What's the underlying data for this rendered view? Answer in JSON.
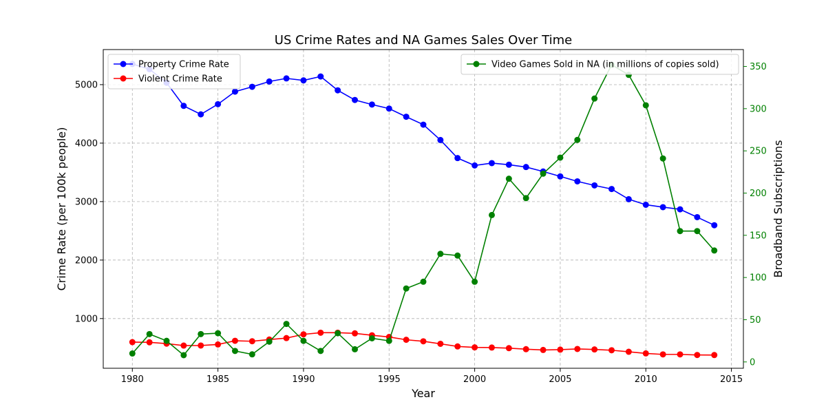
{
  "chart_data": {
    "type": "line",
    "title": "US Crime Rates and NA Games Sales Over Time",
    "xlabel": "Year",
    "ylabel_left": "Crime Rate (per 100k people)",
    "ylabel_right": "Broadband Subscriptions",
    "x": [
      1980,
      1981,
      1982,
      1983,
      1984,
      1985,
      1986,
      1987,
      1988,
      1989,
      1990,
      1991,
      1992,
      1993,
      1994,
      1995,
      1996,
      1997,
      1998,
      1999,
      2000,
      2001,
      2002,
      2003,
      2004,
      2005,
      2006,
      2007,
      2008,
      2009,
      2010,
      2011,
      2012,
      2013,
      2014
    ],
    "xlim": [
      1978.3,
      2015.7
    ],
    "xticks": [
      1980,
      1985,
      1990,
      1995,
      2000,
      2005,
      2010,
      2015
    ],
    "ylim_left": [
      150,
      5600
    ],
    "yticks_left": [
      1000,
      2000,
      3000,
      4000,
      5000
    ],
    "ylim_right": [
      -7.5,
      370
    ],
    "yticks_right": [
      0,
      50,
      100,
      150,
      200,
      250,
      300,
      350
    ],
    "grid": true,
    "series": [
      {
        "name": "Property Crime Rate",
        "axis": "left",
        "color": "#0000ff",
        "values": [
          5353,
          5264,
          5032,
          4637,
          4492,
          4666,
          4881,
          4963,
          5054,
          5107,
          5073,
          5140,
          4903,
          4738,
          4660,
          4591,
          4451,
          4316,
          4053,
          3744,
          3618,
          3658,
          3631,
          3591,
          3515,
          3431,
          3346,
          3277,
          3215,
          3041,
          2946,
          2905,
          2868,
          2734,
          2596
        ]
      },
      {
        "name": "Violent Crime Rate",
        "axis": "left",
        "color": "#ff0000",
        "values": [
          597,
          594,
          571,
          538,
          539,
          557,
          620,
          612,
          641,
          666,
          730,
          758,
          758,
          747,
          714,
          685,
          637,
          611,
          568,
          523,
          507,
          504,
          494,
          476,
          463,
          469,
          480,
          472,
          458,
          432,
          404,
          387,
          387,
          377,
          376
        ]
      },
      {
        "name": "Video Games Sold in NA (in millions of copies sold)",
        "axis": "right",
        "color": "#008000",
        "values": [
          10,
          33,
          25,
          8,
          33,
          34,
          13,
          9,
          24,
          45,
          25,
          13,
          34,
          15,
          28,
          25,
          87,
          95,
          128,
          126,
          95,
          174,
          217,
          194,
          223,
          242,
          263,
          312,
          352,
          340,
          304,
          241,
          155,
          155,
          132
        ]
      }
    ],
    "legend_left_placement": "top-left",
    "legend_right_placement": "top-right"
  }
}
